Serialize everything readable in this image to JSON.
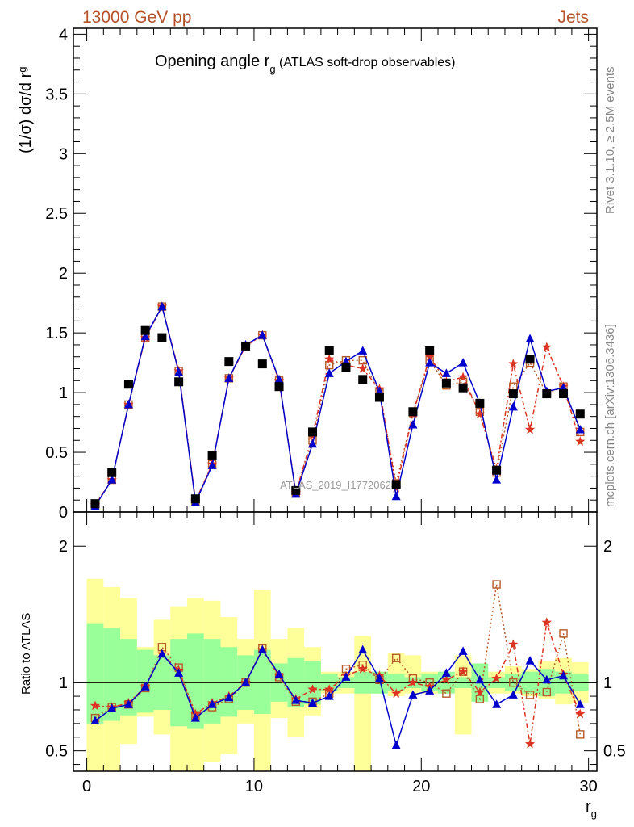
{
  "header": {
    "energy": "13000 GeV pp",
    "process": "Jets"
  },
  "side_labels": {
    "rivet": "Rivet 3.1.10, ≥ 2.5M events",
    "mcplots": "mcplots.cern.ch [arXiv:1306.3436]"
  },
  "title": {
    "main": "Opening angle r",
    "sub": "g",
    "rest": " (ATLAS soft-drop observables)"
  },
  "watermark": "ATLAS_2019_I1772062",
  "colors": {
    "data": "#000000",
    "mc_blue": "#0000cc",
    "mc_red": "#dd3322",
    "mc_brown": "#b55a28",
    "mc_purple": "#aa33aa",
    "band_inner": "#99ff99",
    "band_outer": "#ffff99"
  },
  "chart_data": {
    "type": "line",
    "x": [
      0.5,
      1.5,
      2.5,
      3.5,
      4.5,
      5.5,
      6.5,
      7.5,
      8.5,
      9.5,
      10.5,
      11.5,
      12.5,
      13.5,
      14.5,
      15.5,
      16.5,
      17.5,
      18.5,
      19.5,
      20.5,
      21.5,
      22.5,
      23.5,
      24.5,
      25.5,
      26.5,
      27.5,
      28.5,
      29.5
    ],
    "xlabel": "r",
    "xlabel_sub": "g",
    "xlim": [
      -0.8,
      30.5
    ],
    "xticks": [
      0,
      10,
      20,
      30
    ],
    "main": {
      "ylabel": "(1/σ) dσ/d r",
      "ylabel_sub": "g",
      "ylim": [
        0,
        4.05
      ],
      "yticks": [
        0,
        0.5,
        1,
        1.5,
        2,
        2.5,
        3,
        3.5,
        4
      ],
      "ytick_labels": [
        "0",
        "0.5",
        "1",
        "1.5",
        "2",
        "2.5",
        "3",
        "3.5",
        "4"
      ],
      "series": [
        {
          "role": "data",
          "values": [
            0.07,
            0.33,
            1.07,
            1.52,
            1.46,
            1.09,
            0.11,
            0.47,
            1.26,
            1.39,
            1.24,
            1.05,
            0.18,
            0.67,
            1.35,
            1.21,
            1.11,
            0.96,
            0.23,
            0.84,
            1.35,
            1.08,
            1.04,
            0.91,
            0.35,
            0.99,
            1.28,
            0.99,
            0.99,
            0.82
          ]
        },
        {
          "role": "mc_blue",
          "values": [
            0.05,
            0.27,
            0.9,
            1.47,
            1.72,
            1.17,
            0.08,
            0.39,
            1.12,
            1.4,
            1.48,
            1.11,
            0.15,
            0.57,
            1.16,
            1.26,
            1.35,
            1.01,
            0.13,
            0.73,
            1.25,
            1.16,
            1.25,
            0.91,
            0.27,
            0.88,
            1.45,
            1.01,
            1.04,
            0.69
          ]
        },
        {
          "role": "mc_red",
          "values": [
            0.06,
            0.27,
            0.9,
            1.46,
            1.72,
            1.18,
            0.09,
            0.4,
            1.12,
            1.39,
            1.48,
            1.1,
            0.16,
            0.64,
            1.28,
            1.23,
            1.2,
            1.03,
            0.2,
            0.82,
            1.3,
            1.09,
            1.13,
            0.82,
            0.36,
            1.24,
            0.69,
            1.38,
            1.05,
            0.59
          ]
        },
        {
          "role": "mc_brown",
          "values": [
            0.05,
            0.27,
            0.9,
            1.46,
            1.72,
            1.18,
            0.09,
            0.4,
            1.12,
            1.39,
            1.48,
            1.1,
            0.16,
            0.6,
            1.23,
            1.27,
            1.27,
            1.0,
            0.24,
            0.83,
            1.27,
            1.06,
            1.09,
            0.84,
            0.33,
            1.05,
            1.25,
            0.99,
            1.05,
            0.67
          ]
        }
      ]
    },
    "ratio": {
      "ylabel": "Ratio to ATLAS",
      "ylim": [
        0.35,
        2.25
      ],
      "yticks": [
        0.5,
        1,
        2
      ],
      "ytick_labels": [
        "0.5",
        "1",
        "2"
      ],
      "band_inner": [
        [
          0.7,
          1.43
        ],
        [
          0.72,
          1.4
        ],
        [
          0.76,
          1.32
        ],
        [
          0.78,
          1.24
        ],
        [
          0.8,
          1.2
        ],
        [
          0.68,
          1.32
        ],
        [
          0.66,
          1.36
        ],
        [
          0.7,
          1.32
        ],
        [
          0.75,
          1.26
        ],
        [
          0.8,
          1.2
        ],
        [
          0.77,
          1.24
        ],
        [
          0.86,
          1.14
        ],
        [
          0.82,
          1.18
        ],
        [
          0.84,
          1.16
        ],
        [
          0.94,
          1.06
        ],
        [
          0.96,
          1.04
        ],
        [
          0.92,
          1.08
        ],
        [
          0.92,
          1.08
        ],
        [
          0.94,
          1.06
        ],
        [
          0.96,
          1.04
        ],
        [
          0.94,
          1.06
        ],
        [
          0.92,
          1.08
        ],
        [
          0.96,
          1.04
        ],
        [
          0.86,
          1.14
        ],
        [
          0.96,
          1.04
        ],
        [
          0.94,
          1.06
        ],
        [
          0.92,
          1.08
        ],
        [
          0.9,
          1.1
        ],
        [
          0.92,
          1.08
        ],
        [
          0.94,
          1.06
        ]
      ],
      "band_outer": [
        [
          0.35,
          1.76
        ],
        [
          0.35,
          1.7
        ],
        [
          0.55,
          1.62
        ],
        [
          0.75,
          1.26
        ],
        [
          0.62,
          1.46
        ],
        [
          0.35,
          1.56
        ],
        [
          0.35,
          1.62
        ],
        [
          0.42,
          1.6
        ],
        [
          0.48,
          1.48
        ],
        [
          0.7,
          1.32
        ],
        [
          0.35,
          1.68
        ],
        [
          0.74,
          1.32
        ],
        [
          0.6,
          1.4
        ],
        [
          0.76,
          1.26
        ],
        [
          0.92,
          1.08
        ],
        [
          0.92,
          1.08
        ],
        [
          0.35,
          1.34
        ],
        [
          0.92,
          1.08
        ],
        [
          0.9,
          1.22
        ],
        [
          0.92,
          1.2
        ],
        [
          0.92,
          1.08
        ],
        [
          0.92,
          1.08
        ],
        [
          0.62,
          1.2
        ],
        [
          0.92,
          1.08
        ],
        [
          0.92,
          1.08
        ],
        [
          0.92,
          1.12
        ],
        [
          0.9,
          1.1
        ],
        [
          0.88,
          1.16
        ],
        [
          0.84,
          1.18
        ],
        [
          0.85,
          1.15
        ]
      ],
      "series": [
        {
          "role": "mc_blue",
          "values": [
            0.72,
            0.81,
            0.84,
            0.97,
            1.21,
            1.07,
            0.74,
            0.84,
            0.89,
            1.0,
            1.24,
            1.06,
            0.87,
            0.85,
            0.9,
            1.04,
            1.24,
            1.03,
            0.54,
            0.91,
            0.94,
            1.07,
            1.23,
            1.02,
            0.84,
            0.91,
            1.16,
            1.02,
            1.05,
            0.84
          ]
        },
        {
          "role": "mc_red",
          "values": [
            0.83,
            0.82,
            0.85,
            0.97,
            1.21,
            1.09,
            0.77,
            0.85,
            0.9,
            1.0,
            1.24,
            1.05,
            0.88,
            0.95,
            0.95,
            1.05,
            1.1,
            1.05,
            0.92,
            1.0,
            0.97,
            1.02,
            1.08,
            0.93,
            1.03,
            1.28,
            0.55,
            1.44,
            1.06,
            0.77
          ]
        },
        {
          "role": "mc_brown",
          "values": [
            0.74,
            0.82,
            0.84,
            0.96,
            1.26,
            1.11,
            0.76,
            0.82,
            0.88,
            1.0,
            1.25,
            1.04,
            0.86,
            0.86,
            0.92,
            1.1,
            1.13,
            1.02,
            1.18,
            1.03,
            1.0,
            0.92,
            1.08,
            0.88,
            1.72,
            1.0,
            0.91,
            0.93,
            1.36,
            0.62
          ]
        }
      ]
    }
  }
}
